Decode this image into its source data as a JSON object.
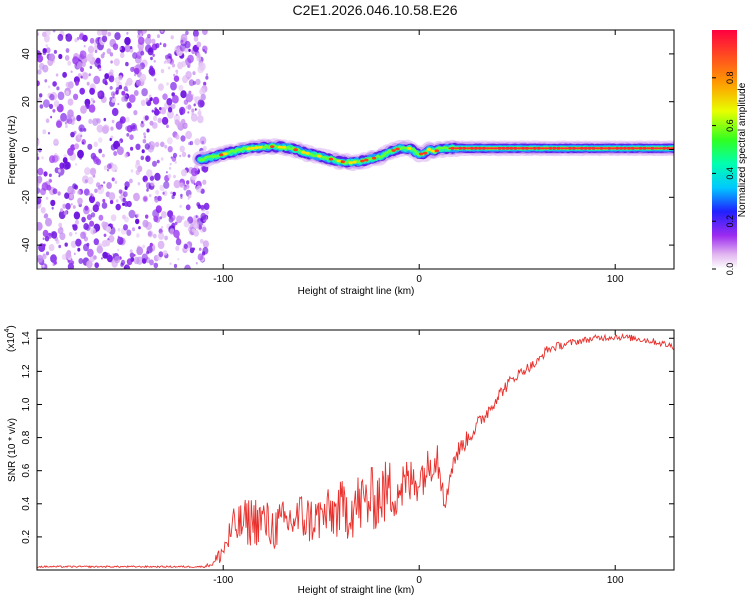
{
  "title": "C2E1.2026.046.10.58.E26",
  "colors": {
    "line": "#e8302c",
    "noise": "#7a1fe6",
    "frame": "#000000"
  },
  "chart_data": [
    {
      "type": "heatmap",
      "name": "spectrogram",
      "xlabel": "Height of straight line (km)",
      "ylabel": "Frequency (Hz)",
      "xlim": [
        -195,
        130
      ],
      "ylim": [
        -50,
        50
      ],
      "xticks": [
        -100,
        0,
        100
      ],
      "yticks": [
        -40,
        -20,
        0,
        20,
        40
      ],
      "noise_region_x": [
        -195,
        -108
      ],
      "track": {
        "x": [
          -110,
          -105,
          -100,
          -95,
          -90,
          -85,
          -80,
          -75,
          -70,
          -65,
          -60,
          -55,
          -50,
          -45,
          -40,
          -35,
          -30,
          -25,
          -20,
          -15,
          -10,
          -5,
          0,
          3,
          5,
          8,
          10,
          15,
          20,
          40,
          60,
          80,
          100,
          120,
          130
        ],
        "freq": [
          -4,
          -3,
          -2,
          -1,
          0,
          0.5,
          1,
          1.2,
          1,
          0.5,
          -1,
          -2,
          -3,
          -4,
          -5,
          -5.5,
          -5,
          -4,
          -3,
          -1,
          0.5,
          0.5,
          -2,
          -1.5,
          0,
          -1,
          0,
          0.5,
          0.5,
          0.5,
          0.5,
          0.5,
          0.5,
          0.5,
          0.5
        ],
        "width_hz": 3.5
      },
      "colorbar": {
        "label": "Normalized spectral amplitude",
        "ticks": [
          "0.0",
          "0.2",
          "0.4",
          "0.6",
          "0.8"
        ],
        "tick_values": [
          0.0,
          0.2,
          0.4,
          0.6,
          0.8
        ],
        "range": [
          0,
          1
        ]
      }
    },
    {
      "type": "line",
      "name": "snr",
      "xlabel": "Height of straight line (km)",
      "ylabel": "SNR (10 * v/v)",
      "scale_label": "(x10",
      "scale_exp": "4",
      "scale_close": ")",
      "xlim": [
        -195,
        130
      ],
      "ylim": [
        0,
        1.45
      ],
      "xticks": [
        -100,
        0,
        100
      ],
      "yticks": [
        0.2,
        0.4,
        0.6,
        0.8,
        1.0,
        1.2,
        1.4
      ],
      "ytick_labels": [
        "0.2",
        "0.4",
        "0.6",
        "0.8",
        "1.0",
        "1.2",
        "1.4"
      ],
      "series_envelope": {
        "x": [
          -195,
          -110,
          -105,
          -100,
          -95,
          -90,
          -85,
          -80,
          -75,
          -70,
          -65,
          -60,
          -55,
          -50,
          -45,
          -40,
          -35,
          -30,
          -25,
          -20,
          -15,
          -10,
          -5,
          0,
          5,
          8,
          10,
          12,
          14,
          16,
          20,
          25,
          30,
          35,
          40,
          45,
          50,
          55,
          60,
          65,
          70,
          80,
          90,
          100,
          110,
          120,
          130
        ],
        "mean": [
          0.02,
          0.02,
          0.04,
          0.12,
          0.25,
          0.28,
          0.3,
          0.3,
          0.25,
          0.28,
          0.3,
          0.32,
          0.3,
          0.32,
          0.34,
          0.36,
          0.38,
          0.4,
          0.42,
          0.45,
          0.48,
          0.5,
          0.52,
          0.56,
          0.62,
          0.7,
          0.68,
          0.55,
          0.4,
          0.62,
          0.72,
          0.8,
          0.88,
          0.96,
          1.05,
          1.12,
          1.18,
          1.22,
          1.25,
          1.33,
          1.35,
          1.38,
          1.4,
          1.41,
          1.4,
          1.38,
          1.35
        ],
        "noise": [
          0.005,
          0.005,
          0.02,
          0.08,
          0.12,
          0.14,
          0.16,
          0.15,
          0.14,
          0.14,
          0.14,
          0.16,
          0.15,
          0.15,
          0.16,
          0.18,
          0.2,
          0.2,
          0.2,
          0.2,
          0.2,
          0.18,
          0.16,
          0.14,
          0.12,
          0.12,
          0.18,
          0.15,
          0.08,
          0.08,
          0.06,
          0.05,
          0.05,
          0.05,
          0.04,
          0.04,
          0.03,
          0.03,
          0.03,
          0.025,
          0.025,
          0.02,
          0.02,
          0.02,
          0.02,
          0.02,
          0.02
        ]
      }
    }
  ]
}
